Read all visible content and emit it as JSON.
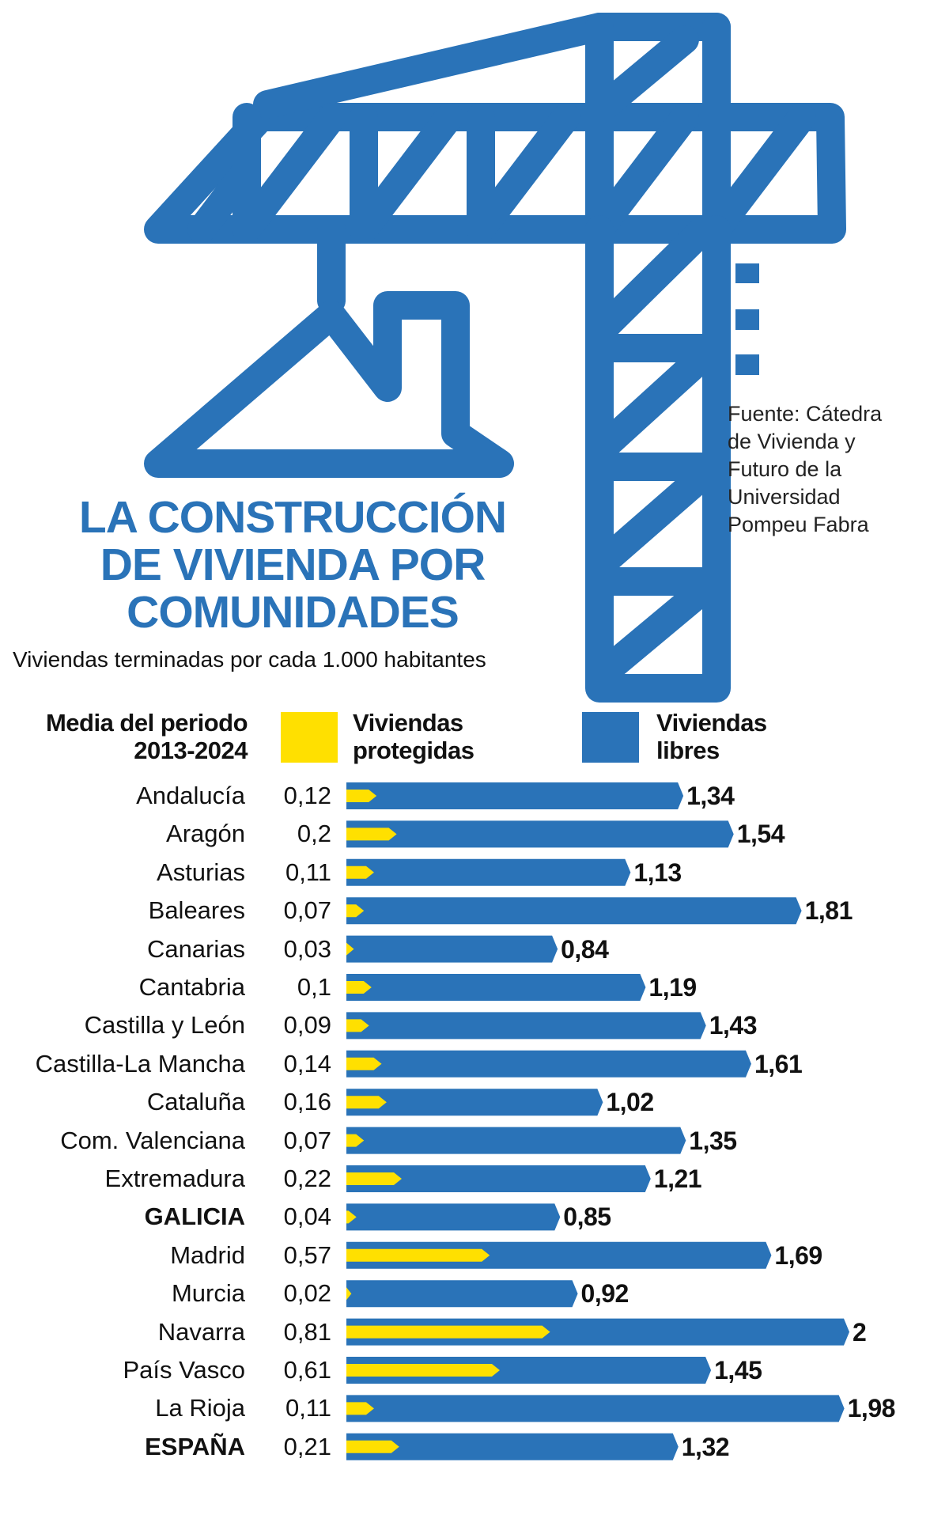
{
  "title_lines": [
    "LA CONSTRUCCIÓN",
    "DE VIVIENDA POR",
    "COMUNIDADES"
  ],
  "subtitle": "Viviendas terminadas por cada 1.000 habitantes",
  "source_lines": [
    "Fuente: Cátedra",
    "de Vivienda y",
    "Futuro de la",
    "Universidad",
    "Pompeu Fabra"
  ],
  "period_label_lines": [
    "Media del periodo",
    "2013-2024"
  ],
  "colors": {
    "blue": "#2a73b8",
    "yellow": "#ffe000"
  },
  "chart_data": {
    "type": "bar",
    "orientation": "horizontal",
    "categories": [
      "Andalucía",
      "Aragón",
      "Asturias",
      "Baleares",
      "Canarias",
      "Cantabria",
      "Castilla y León",
      "Castilla-La Mancha",
      "Cataluña",
      "Com. Valenciana",
      "Extremadura",
      "GALICIA",
      "Madrid",
      "Murcia",
      "Navarra",
      "País Vasco",
      "La Rioja",
      "ESPAÑA"
    ],
    "highlighted": [
      "GALICIA",
      "ESPAÑA"
    ],
    "series": [
      {
        "name": "Viviendas protegidas",
        "name_lines": [
          "Viviendas",
          "protegidas"
        ],
        "color": "#ffe000",
        "values": [
          0.12,
          0.2,
          0.11,
          0.07,
          0.03,
          0.1,
          0.09,
          0.14,
          0.16,
          0.07,
          0.22,
          0.04,
          0.57,
          0.02,
          0.81,
          0.61,
          0.11,
          0.21
        ],
        "labels": [
          "0,12",
          "0,2",
          "0,11",
          "0,07",
          "0,03",
          "0,1",
          "0,09",
          "0,14",
          "0,16",
          "0,07",
          "0,22",
          "0,04",
          "0,57",
          "0,02",
          "0,81",
          "0,61",
          "0,11",
          "0,21"
        ]
      },
      {
        "name": "Viviendas libres",
        "name_lines": [
          "Viviendas",
          "libres"
        ],
        "color": "#2a73b8",
        "values": [
          1.34,
          1.54,
          1.13,
          1.81,
          0.84,
          1.19,
          1.43,
          1.61,
          1.02,
          1.35,
          1.21,
          0.85,
          1.69,
          0.92,
          2,
          1.45,
          1.98,
          1.32
        ],
        "labels": [
          "1,34",
          "1,54",
          "1,13",
          "1,81",
          "0,84",
          "1,19",
          "1,43",
          "1,61",
          "1,02",
          "1,35",
          "1,21",
          "0,85",
          "1,69",
          "0,92",
          "2",
          "1,45",
          "1,98",
          "1,32"
        ]
      }
    ],
    "unit": "Viviendas terminadas por cada 1.000 habitantes",
    "xlim": [
      0,
      2
    ],
    "grid": false,
    "legend": "top"
  }
}
